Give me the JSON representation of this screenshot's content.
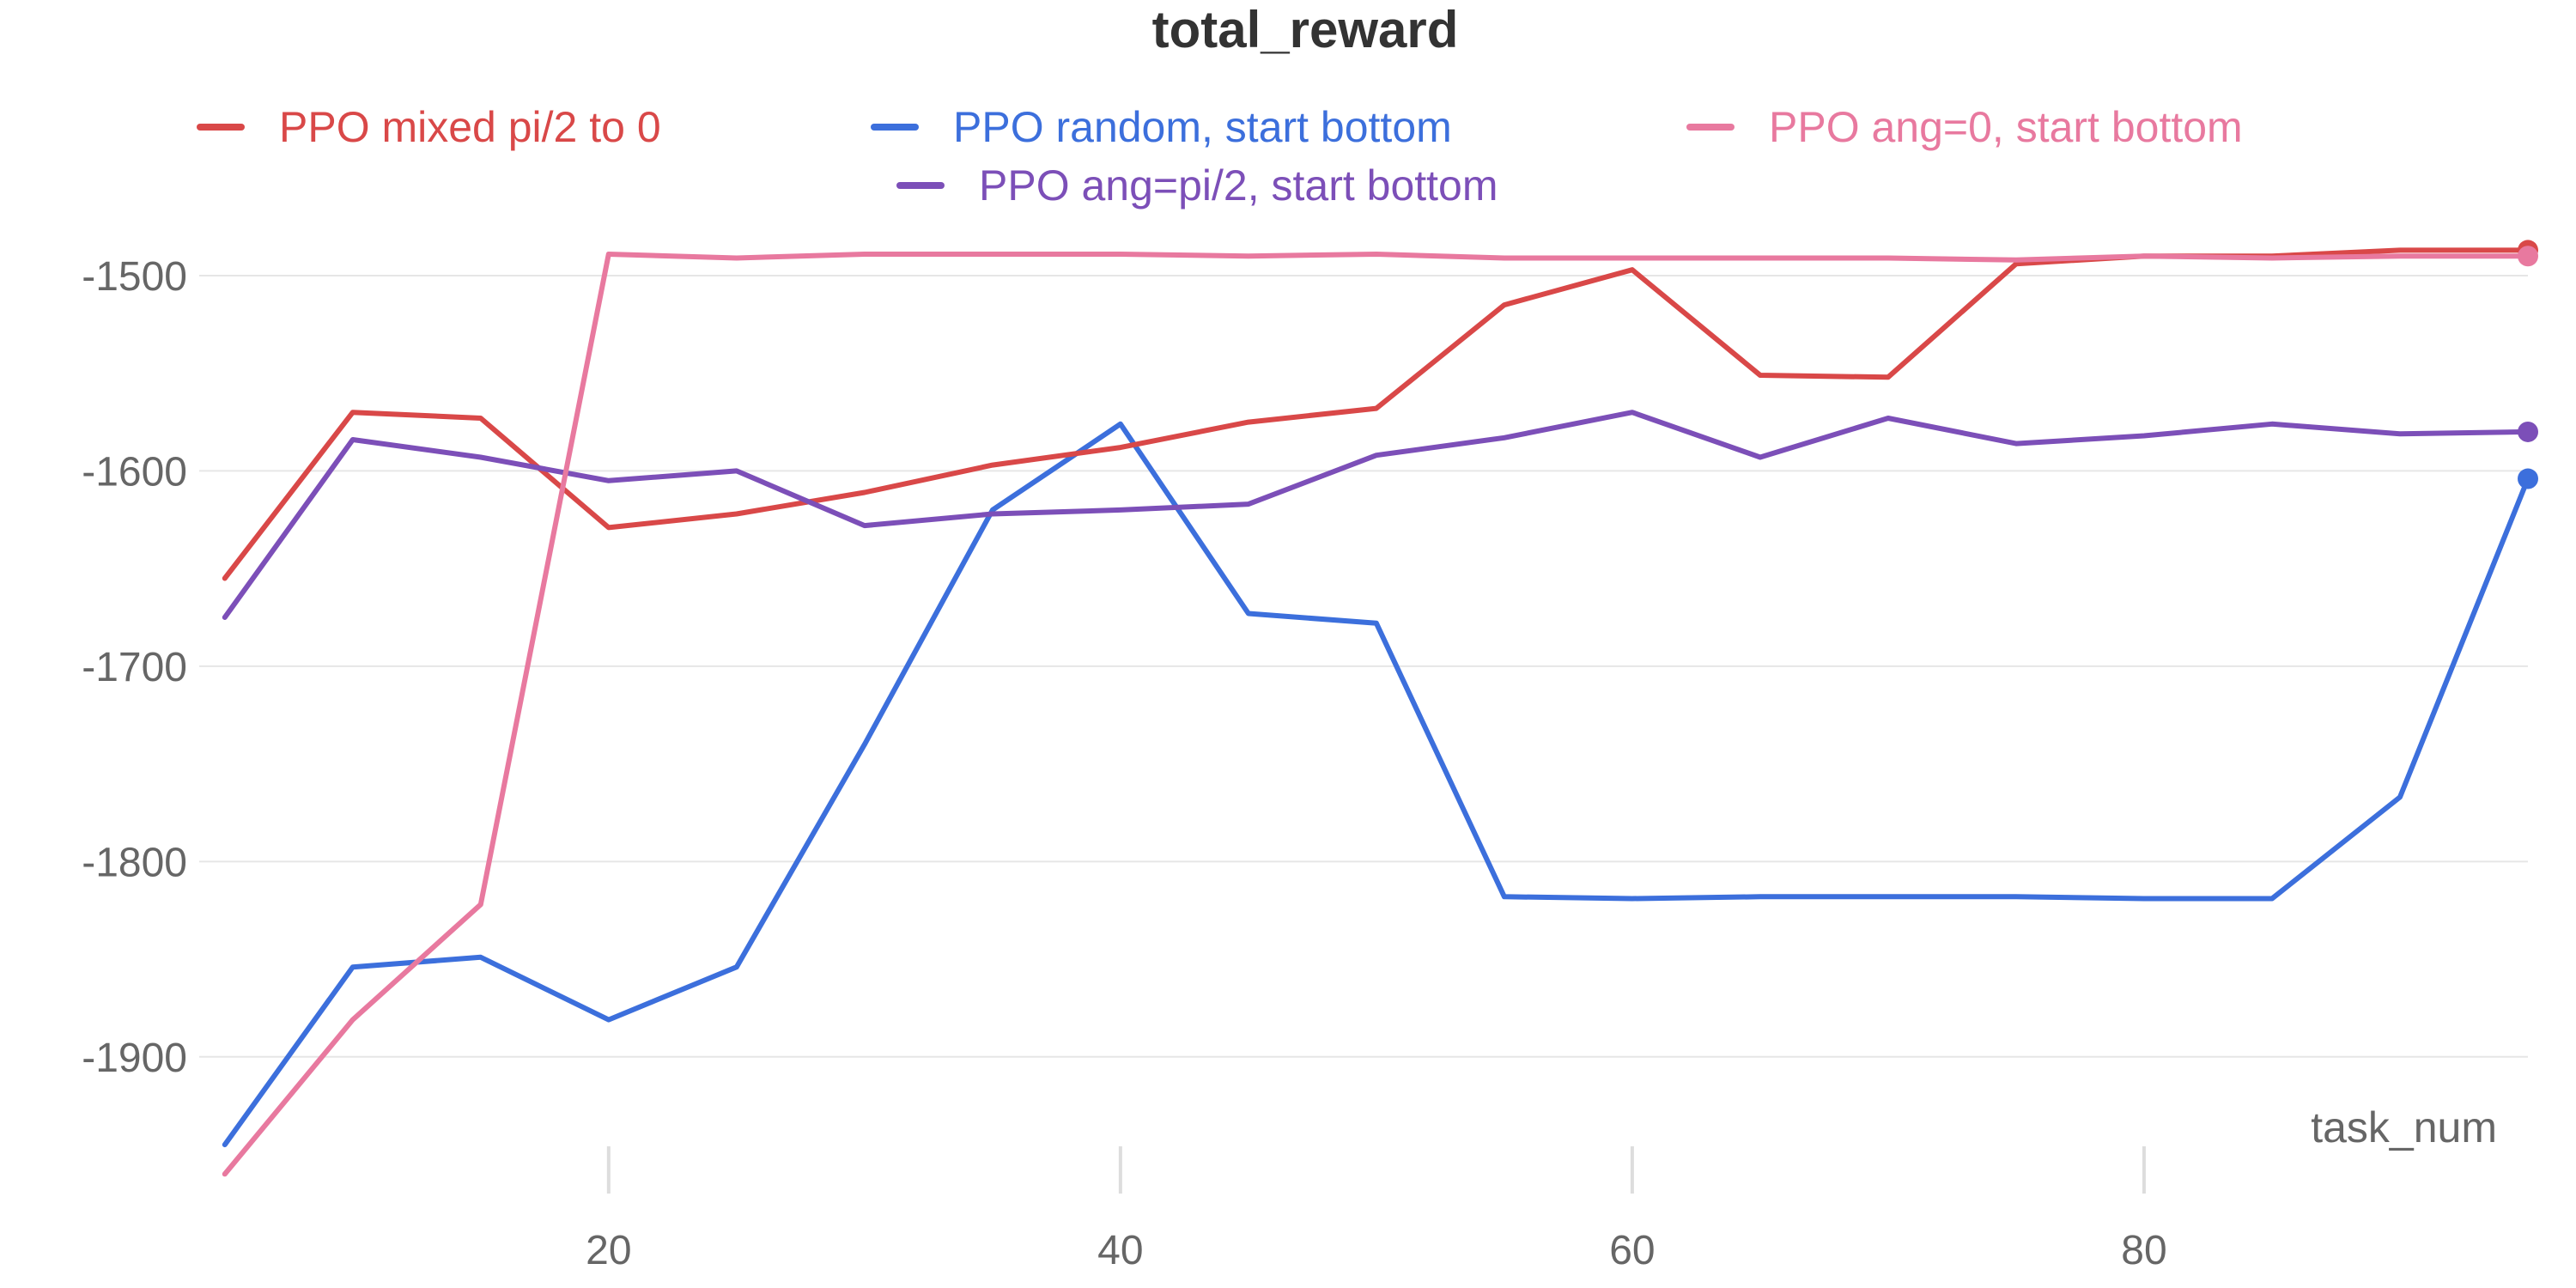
{
  "chart_data": {
    "type": "line",
    "title": "total_reward",
    "xlabel": "task_num",
    "ylabel": "",
    "xlim": [
      4,
      95
    ],
    "ylim": [
      -1970,
      -1460
    ],
    "x_ticks": [
      20,
      40,
      60,
      80
    ],
    "y_ticks": [
      -1500,
      -1600,
      -1700,
      -1800,
      -1900
    ],
    "grid": true,
    "legend_position": "top",
    "x": [
      5,
      10,
      15,
      20,
      25,
      30,
      35,
      40,
      45,
      50,
      55,
      60,
      65,
      70,
      75,
      80,
      85,
      90,
      95
    ],
    "series": [
      {
        "name": "PPO mixed pi/2 to 0",
        "color": "#d94848",
        "values": [
          -1655,
          -1570,
          -1573,
          -1629,
          -1622,
          -1611,
          -1597,
          -1588,
          -1575,
          -1568,
          -1515,
          -1497,
          -1551,
          -1552,
          -1494,
          -1490,
          -1490,
          -1487,
          -1487
        ]
      },
      {
        "name": "PPO random, start bottom",
        "color": "#3c6fdc",
        "values": [
          -1945,
          -1854,
          -1849,
          -1881,
          -1854,
          -1740,
          -1620,
          -1576,
          -1673,
          -1678,
          -1818,
          -1819,
          -1818,
          -1818,
          -1818,
          -1819,
          -1819,
          -1767,
          -1604
        ]
      },
      {
        "name": "PPO ang=0, start bottom",
        "color": "#e8799f",
        "values": [
          -1960,
          -1881,
          -1822,
          -1489,
          -1491,
          -1489,
          -1489,
          -1489,
          -1490,
          -1489,
          -1491,
          -1491,
          -1491,
          -1491,
          -1492,
          -1490,
          -1491,
          -1490,
          -1490
        ]
      },
      {
        "name": "PPO ang=pi/2, start bottom",
        "color": "#7c4fb8",
        "values": [
          -1675,
          -1584,
          -1593,
          -1605,
          -1600,
          -1628,
          -1622,
          -1620,
          -1617,
          -1592,
          -1583,
          -1570,
          -1593,
          -1573,
          -1586,
          -1582,
          -1576,
          -1581,
          -1580
        ]
      }
    ]
  }
}
